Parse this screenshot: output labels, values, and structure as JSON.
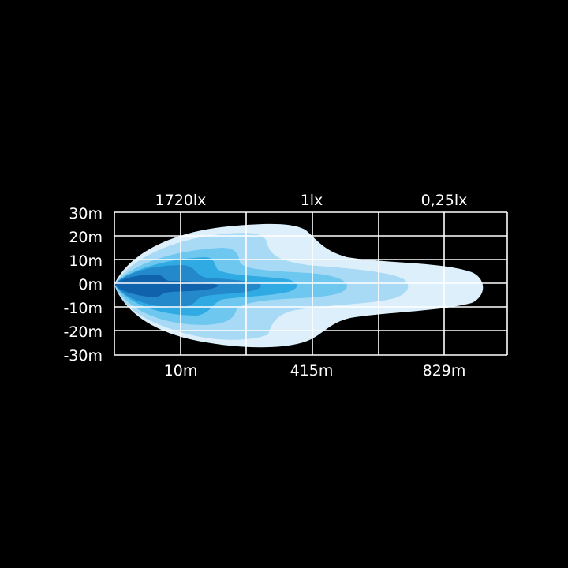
{
  "top_labels": [
    "1720lx",
    "1lx",
    "0,25lx"
  ],
  "bottom_labels": [
    "10m",
    "415m",
    "829m"
  ],
  "y_labels": [
    "30m",
    "20m",
    "10m",
    "0m",
    "-10m",
    "-20m",
    "-30m"
  ],
  "zone_colors": [
    "#dceffb",
    "#a9daf5",
    "#6dc7ef",
    "#30aae2",
    "#2389cb",
    "#0f62ab"
  ],
  "grid_color": "#ffffff"
}
